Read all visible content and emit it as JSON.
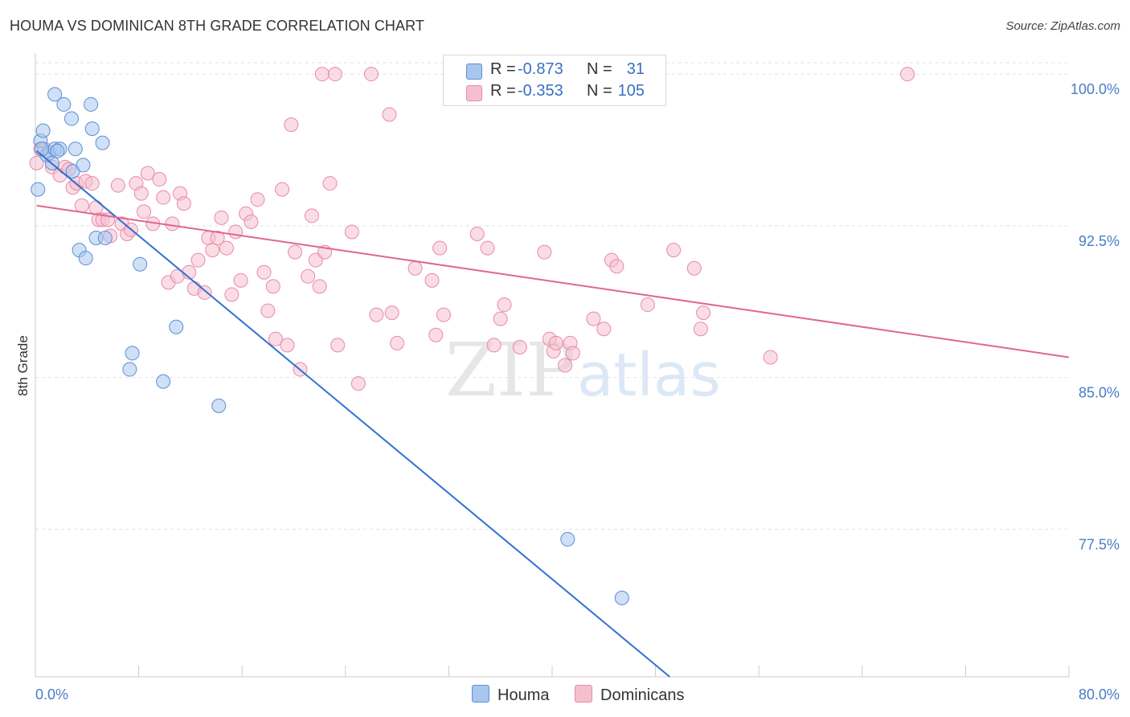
{
  "title": "HOUMA VS DOMINICAN 8TH GRADE CORRELATION CHART",
  "source": "Source: ZipAtlas.com",
  "watermark": {
    "zip": "ZIP",
    "atlas": "atlas"
  },
  "colors": {
    "houma_fill": "#a9c6ef",
    "houma_stroke": "#5b8fd4",
    "houma_line": "#2f72d2",
    "dom_fill": "#f6bfd0",
    "dom_stroke": "#e98aa8",
    "dom_line": "#e0678f",
    "tick_text": "#4a7cc7",
    "grid": "#e2e2e2"
  },
  "legend": {
    "houma": {
      "r_label": "R =",
      "r_value": "-0.873",
      "n_label": "N =",
      "n_value": "31"
    },
    "dominicans": {
      "r_label": "R =",
      "r_value": "-0.353",
      "n_label": "N =",
      "n_value": "105"
    }
  },
  "bottom_legend": {
    "houma": "Houma",
    "dominicans": "Dominicans"
  },
  "chart_data": {
    "type": "scatter",
    "title": "HOUMA VS DOMINICAN 8TH GRADE CORRELATION CHART",
    "ylabel": "8th Grade",
    "xlabel": "",
    "xlim": [
      0,
      80
    ],
    "ylim": [
      70.2,
      101.2
    ],
    "x_tick_labels": [
      {
        "value": 0,
        "label": "0.0%"
      },
      {
        "value": 80,
        "label": "80.0%"
      }
    ],
    "x_minor_ticks": [
      8,
      16,
      24,
      32,
      40,
      48,
      56,
      64,
      72,
      80
    ],
    "y_ticks": [
      {
        "value": 100,
        "label": "100.0%"
      },
      {
        "value": 92.5,
        "label": "92.5%"
      },
      {
        "value": 85,
        "label": "85.0%"
      },
      {
        "value": 77.5,
        "label": "77.5%"
      }
    ],
    "grid": true,
    "legend_position": "top-center",
    "series": [
      {
        "name": "Houma",
        "trend": {
          "x": [
            0.1,
            49.1
          ],
          "y": [
            96.2,
            70.2
          ]
        },
        "points": [
          [
            0.2,
            94.3
          ],
          [
            0.4,
            96.7
          ],
          [
            0.6,
            97.2
          ],
          [
            0.9,
            96.0
          ],
          [
            1.1,
            96.1
          ],
          [
            1.3,
            95.6
          ],
          [
            1.5,
            96.3
          ],
          [
            1.5,
            99.0
          ],
          [
            1.9,
            96.3
          ],
          [
            2.2,
            98.5
          ],
          [
            2.8,
            97.8
          ],
          [
            2.9,
            95.2
          ],
          [
            3.1,
            96.3
          ],
          [
            3.4,
            91.3
          ],
          [
            3.7,
            95.5
          ],
          [
            3.9,
            90.9
          ],
          [
            4.3,
            98.5
          ],
          [
            4.4,
            97.3
          ],
          [
            4.7,
            91.9
          ],
          [
            5.2,
            96.6
          ],
          [
            5.4,
            91.9
          ],
          [
            7.3,
            85.4
          ],
          [
            7.5,
            86.2
          ],
          [
            8.1,
            90.6
          ],
          [
            9.9,
            84.8
          ],
          [
            10.9,
            87.5
          ],
          [
            14.2,
            83.6
          ],
          [
            41.2,
            77.0
          ],
          [
            45.4,
            74.1
          ],
          [
            0.5,
            96.3
          ],
          [
            1.7,
            96.2
          ]
        ]
      },
      {
        "name": "Dominicans",
        "trend": {
          "x": [
            0.1,
            80.0
          ],
          "y": [
            93.5,
            86.0
          ]
        },
        "points": [
          [
            0.1,
            95.6
          ],
          [
            0.4,
            96.3
          ],
          [
            0.7,
            96.3
          ],
          [
            1.1,
            96.1
          ],
          [
            1.3,
            95.4
          ],
          [
            1.9,
            95.0
          ],
          [
            2.3,
            95.4
          ],
          [
            2.6,
            95.3
          ],
          [
            2.9,
            94.4
          ],
          [
            3.2,
            94.6
          ],
          [
            3.6,
            93.5
          ],
          [
            3.9,
            94.7
          ],
          [
            4.4,
            94.6
          ],
          [
            4.7,
            93.4
          ],
          [
            4.9,
            92.8
          ],
          [
            5.2,
            92.8
          ],
          [
            5.6,
            92.8
          ],
          [
            5.8,
            92.0
          ],
          [
            6.4,
            94.5
          ],
          [
            6.7,
            92.6
          ],
          [
            7.1,
            92.1
          ],
          [
            7.4,
            92.3
          ],
          [
            7.8,
            94.6
          ],
          [
            8.2,
            94.1
          ],
          [
            8.4,
            93.2
          ],
          [
            8.7,
            95.1
          ],
          [
            9.1,
            92.6
          ],
          [
            9.6,
            94.8
          ],
          [
            9.9,
            93.9
          ],
          [
            10.3,
            89.7
          ],
          [
            10.6,
            92.6
          ],
          [
            11.0,
            90.0
          ],
          [
            11.2,
            94.1
          ],
          [
            11.5,
            93.6
          ],
          [
            11.9,
            90.2
          ],
          [
            12.3,
            89.4
          ],
          [
            12.6,
            90.8
          ],
          [
            13.1,
            89.2
          ],
          [
            13.4,
            91.9
          ],
          [
            13.7,
            91.3
          ],
          [
            14.1,
            91.9
          ],
          [
            14.4,
            92.9
          ],
          [
            14.8,
            91.4
          ],
          [
            15.2,
            89.1
          ],
          [
            15.5,
            92.2
          ],
          [
            15.9,
            89.8
          ],
          [
            16.3,
            93.1
          ],
          [
            16.7,
            92.7
          ],
          [
            17.2,
            93.8
          ],
          [
            17.7,
            90.2
          ],
          [
            18.0,
            88.3
          ],
          [
            18.4,
            89.5
          ],
          [
            18.6,
            86.9
          ],
          [
            19.1,
            94.3
          ],
          [
            19.5,
            86.6
          ],
          [
            19.8,
            97.5
          ],
          [
            20.1,
            91.2
          ],
          [
            20.5,
            85.4
          ],
          [
            21.1,
            90.0
          ],
          [
            21.4,
            93.0
          ],
          [
            21.7,
            90.8
          ],
          [
            22.0,
            89.5
          ],
          [
            22.2,
            100.0
          ],
          [
            22.4,
            91.2
          ],
          [
            22.8,
            94.6
          ],
          [
            23.2,
            100.0
          ],
          [
            23.4,
            86.6
          ],
          [
            24.5,
            92.2
          ],
          [
            25.0,
            84.7
          ],
          [
            26.0,
            100.0
          ],
          [
            26.4,
            88.1
          ],
          [
            27.4,
            98.0
          ],
          [
            27.6,
            88.2
          ],
          [
            28.0,
            86.7
          ],
          [
            29.4,
            90.4
          ],
          [
            30.7,
            89.8
          ],
          [
            31.0,
            87.1
          ],
          [
            31.3,
            91.4
          ],
          [
            31.6,
            88.1
          ],
          [
            32.5,
            100.0
          ],
          [
            34.2,
            92.1
          ],
          [
            35.0,
            91.4
          ],
          [
            35.5,
            86.6
          ],
          [
            36.0,
            87.9
          ],
          [
            36.3,
            88.6
          ],
          [
            37.5,
            86.5
          ],
          [
            39.4,
            91.2
          ],
          [
            39.8,
            86.9
          ],
          [
            40.1,
            86.3
          ],
          [
            41.0,
            85.6
          ],
          [
            41.4,
            86.7
          ],
          [
            41.6,
            86.2
          ],
          [
            42.4,
            100.0
          ],
          [
            43.2,
            87.9
          ],
          [
            44.0,
            87.4
          ],
          [
            44.6,
            90.8
          ],
          [
            45.0,
            90.5
          ],
          [
            47.4,
            88.6
          ],
          [
            49.4,
            91.3
          ],
          [
            51.0,
            90.4
          ],
          [
            51.5,
            87.4
          ],
          [
            51.7,
            88.2
          ],
          [
            56.9,
            86.0
          ],
          [
            67.5,
            100.0
          ],
          [
            40.3,
            86.7
          ]
        ]
      }
    ]
  }
}
